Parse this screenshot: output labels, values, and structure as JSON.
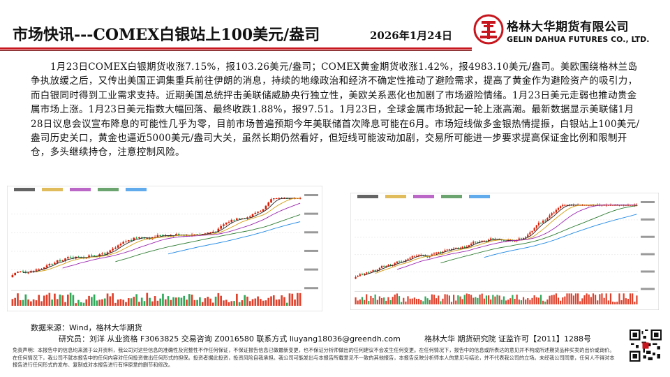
{
  "header": {
    "title": "市场快讯---COMEX白银站上100美元/盎司",
    "date": "2026年1月24日",
    "company_cn": "格林大华期货有限公司",
    "company_en": "GELIN DAHUA FUTURES CO., LTD.",
    "brand_color": "#c7161d"
  },
  "article": {
    "paragraph": "1月23日COMEX白银期货收涨7.15%，报103.26美元/盎司；COMEX黄金期货收涨1.42%，报4983.10美元/盎司。美欧围绕格林兰岛争执放缓之后，又传出美国正调集重兵前往伊朗的消息，持续的地缘政治和经济不确定性推动了避险需求，提高了黄金作为避险资产的吸引力，而白银同时得到工业需求支持。近期美国总统抨击美联储威胁央行独立性，美欧关系恶化也加剧了市场避险情绪。1月23日美元走弱也推动贵金属市场上涨。1月23日美元指数大幅回落、最终收跌1.88%，报97.51。1月23日，全球金属市场掀起一轮上涨高潮。最新数据显示美联储1月28日议息会议宣布降息的可能性几乎为零，目前市场普遍预期今年美联储首次降息可能在6月。市场短线做多金银热情提振，白银站上100美元/盎司历史关口，黄金也逼近5000美元/盎司大关，虽然长期仍然看好，但短线可能波动加剧，交易所可能进一步要求提高保证金比例和限制开仓，多头继续持仓，注意控制风险。"
  },
  "footer": {
    "source": "数据来源：Wind，格林大华期货",
    "researcher": "研究员：刘洋  从业资格 F3063825   交易咨询 Z0016580   联系方式 liuyang18036@greendh.com",
    "license": "格林大华 期货研究院  证监许可【2011】1288号",
    "disclaimer": "免责声明：本报告中的信息均来源于公开资料，我公司对这些信息的准确性及完整性不作任何保证，不保证报告信息已做最新变更，也不保证分析师做出的任何建议不会发生任何变更。在任何情况下，报告中的信息或所表达的意见并不构成所述期货品种买卖的出价或询价。在任何情况下，我公司不就本报告中的任何内容对任何投资做出任何形式的担保。投资者据此投资，投资风险自我承担。我公司可能发出与本报告所载意见不一致的其他报告，本报告反映分析师本人的意见与结论，并不代表我公司的立场。未经我公司同意，任何人不得对本报告进行任何形式的发布、复制或对本报告进行有悖原意的删节和修改。"
  },
  "colors": {
    "candle_up": "#d81e06",
    "candle_down": "#0a9a3c",
    "ma_colors": [
      "#222222",
      "#d4a017",
      "#9c27b0",
      "#2e7d32",
      "#1e88e5"
    ]
  }
}
